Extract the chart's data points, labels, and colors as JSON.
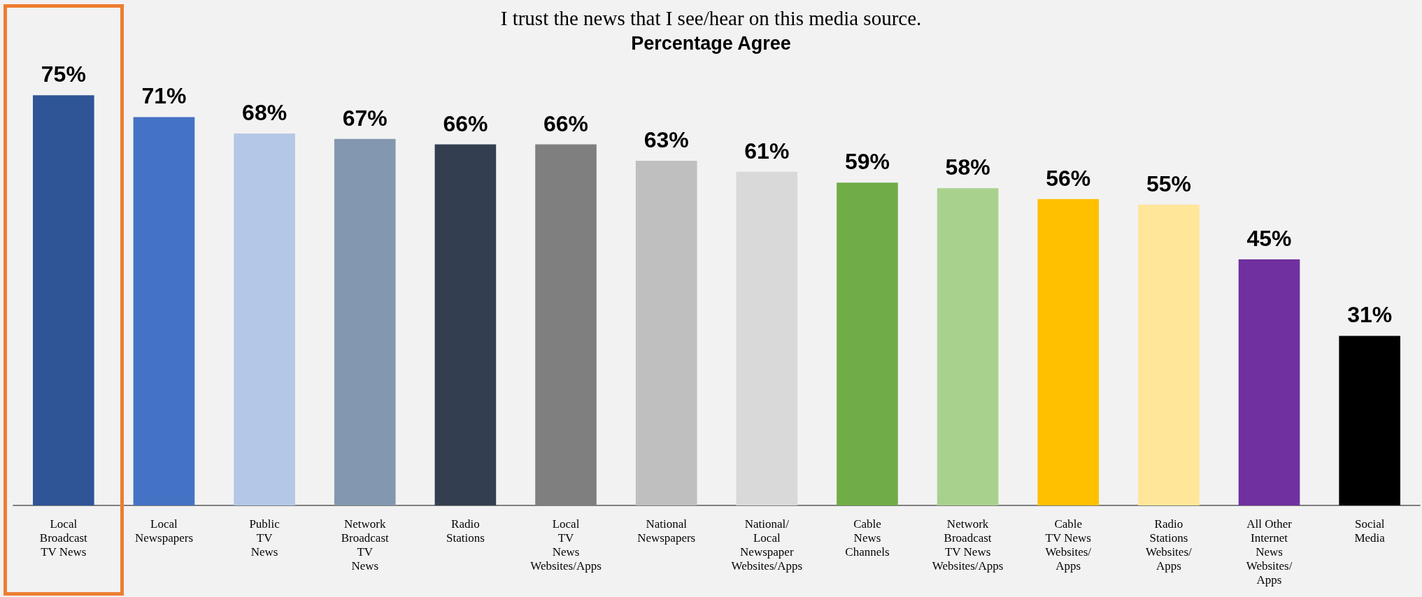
{
  "chart_data": {
    "type": "bar",
    "title": "I trust the news that I see/hear on this media source.",
    "subtitle": "Percentage Agree",
    "categories": [
      "Local\nBroadcast\nTV News",
      "Local\nNewspapers",
      "Public\nTV\nNews",
      "Network\nBroadcast\nTV\nNews",
      "Radio\nStations",
      "Local\nTV\nNews\nWebsites/Apps",
      "National\nNewspapers",
      "National/\nLocal\nNewspaper\nWebsites/Apps",
      "Cable\nNews\nChannels",
      "Network\nBroadcast\nTV News\nWebsites/Apps",
      "Cable\nTV News\nWebsites/\nApps",
      "Radio\nStations\nWebsites/\nApps",
      "All Other\nInternet\nNews\nWebsites/\nApps",
      "Social\nMedia"
    ],
    "values": [
      75,
      71,
      68,
      67,
      66,
      66,
      63,
      61,
      59,
      58,
      56,
      55,
      45,
      31
    ],
    "value_labels": [
      "75%",
      "71%",
      "68%",
      "67%",
      "66%",
      "66%",
      "63%",
      "61%",
      "59%",
      "58%",
      "56%",
      "55%",
      "45%",
      "31%"
    ],
    "colors": [
      "#2f5597",
      "#4472c4",
      "#b4c7e7",
      "#8497b0",
      "#333f50",
      "#7f7f7f",
      "#bfbfbf",
      "#d9d9d9",
      "#70ad47",
      "#a9d18e",
      "#ffc000",
      "#ffe699",
      "#7030a0",
      "#000000"
    ]
  }
}
